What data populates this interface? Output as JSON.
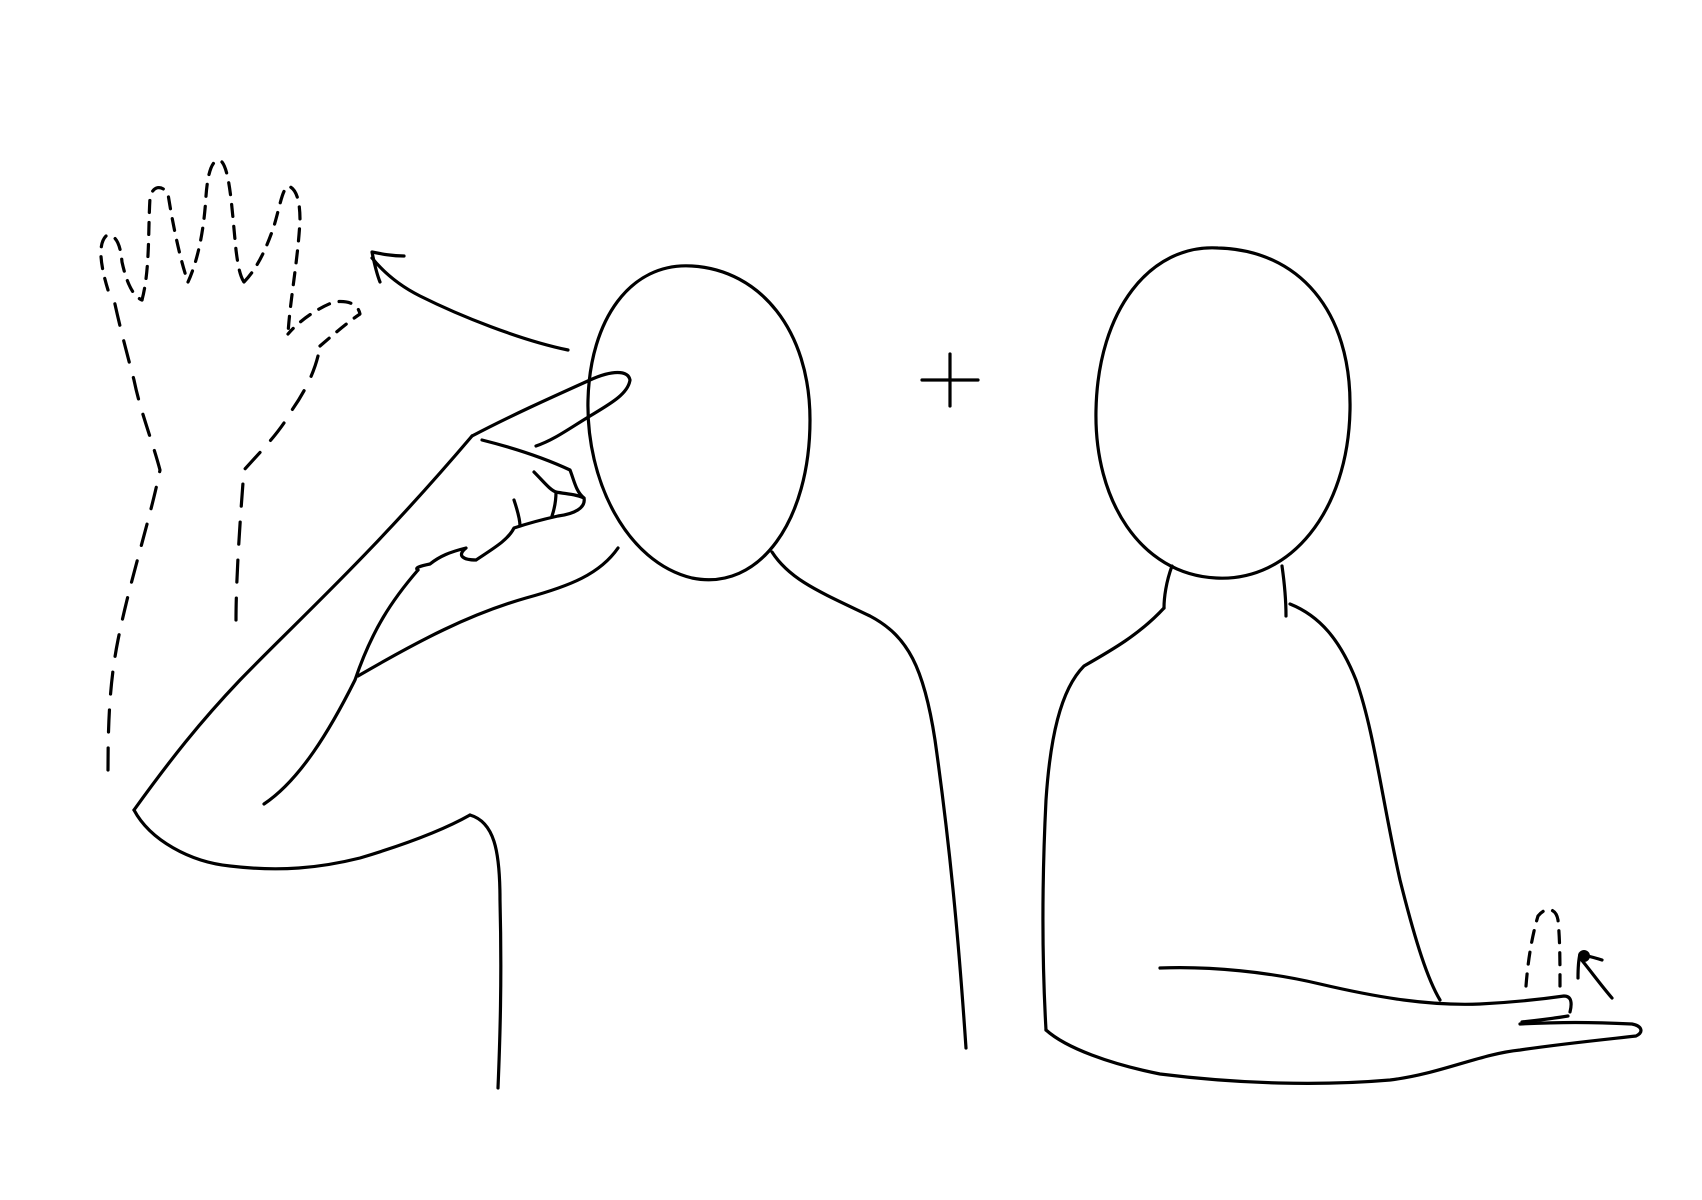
{
  "diagram": {
    "background_color": "#ffffff",
    "line_color": "#000000",
    "panels": [
      {
        "id": "figure-1-pointing-to-head-then-opening-hand"
      },
      {
        "id": "figure-2-arm-across-body-finger-flick"
      }
    ],
    "connector_symbol": "+"
  }
}
